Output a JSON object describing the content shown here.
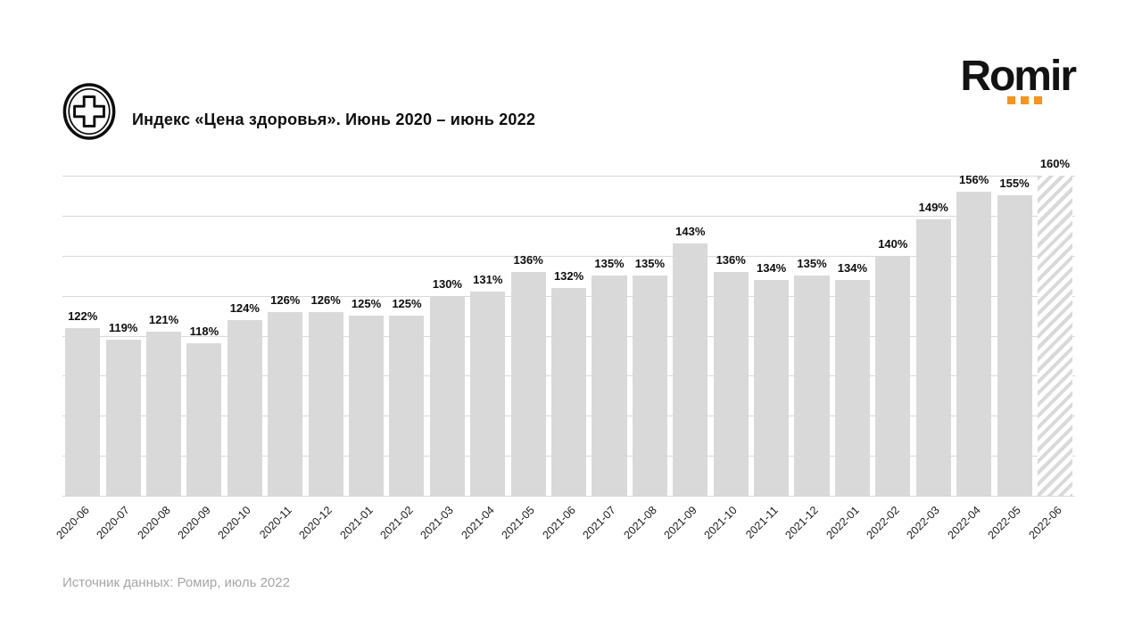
{
  "header": {
    "title": "Индекс «Цена здоровья». Июнь 2020 – июнь 2022",
    "icon": "medical-cross-circle-icon"
  },
  "logo": {
    "text": "Romir",
    "dots_count": 3,
    "dot_color": "#f7941e",
    "text_color": "#121212"
  },
  "chart_data": {
    "type": "bar",
    "title": "Индекс «Цена здоровья». Июнь 2020 – июнь 2022",
    "categories": [
      "2020-06",
      "2020-07",
      "2020-08",
      "2020-09",
      "2020-10",
      "2020-11",
      "2020-12",
      "2021-01",
      "2021-02",
      "2021-03",
      "2021-04",
      "2021-05",
      "2021-06",
      "2021-07",
      "2021-08",
      "2021-09",
      "2021-10",
      "2021-11",
      "2021-12",
      "2022-01",
      "2022-02",
      "2022-03",
      "2022-04",
      "2022-05",
      "2022-06"
    ],
    "values": [
      122,
      119,
      121,
      118,
      124,
      126,
      126,
      125,
      125,
      130,
      131,
      136,
      132,
      135,
      135,
      143,
      136,
      134,
      135,
      134,
      140,
      149,
      156,
      155,
      160
    ],
    "value_suffix": "%",
    "data_labels": [
      "122%",
      "119%",
      "121%",
      "118%",
      "124%",
      "126%",
      "126%",
      "125%",
      "125%",
      "130%",
      "131%",
      "136%",
      "132%",
      "135%",
      "135%",
      "143%",
      "136%",
      "134%",
      "135%",
      "134%",
      "140%",
      "149%",
      "156%",
      "155%",
      "160%"
    ],
    "last_bar_style": "hatched",
    "bar_color": "#d9d9d9",
    "gridline_color": "#d9d9d9",
    "xlabel": "",
    "ylabel": "",
    "ylim": [
      80,
      160
    ],
    "grid_step": 10,
    "grid": "horizontal",
    "legend_position": "none",
    "x_tick_rotation": 45
  },
  "footer": {
    "source": "Источник данных: Ромир, июль 2022"
  }
}
